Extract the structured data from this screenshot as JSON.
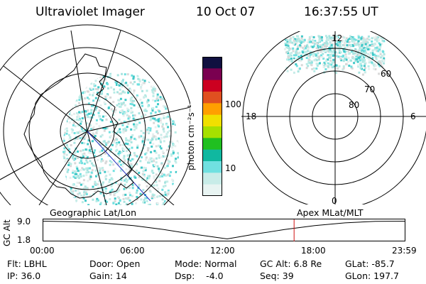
{
  "header": {
    "title": "Ultraviolet Imager",
    "date": "10 Oct 07",
    "time": "16:37:55 UT"
  },
  "colorbar": {
    "label": "photon cm⁻²s⁻¹",
    "ticks": [
      "100",
      "10"
    ],
    "colors": [
      "#101040",
      "#7a0050",
      "#cc0020",
      "#e05020",
      "#ff9f00",
      "#f0e000",
      "#a6e000",
      "#20c020",
      "#10b8a0",
      "#70e0e0",
      "#c8ece8",
      "#e8f4f2"
    ]
  },
  "geo_map": {
    "label": "Geographic Lat/Lon"
  },
  "polar_plot": {
    "label": "Apex MLat/MLT",
    "mlt_labels": [
      "12",
      "18",
      "6",
      "0"
    ],
    "lat_labels": [
      "60",
      "70",
      "80"
    ]
  },
  "timeline": {
    "ylabel": "GC Alt",
    "yticks": [
      "9.0",
      "1.8"
    ],
    "xticks": [
      "00:00",
      "06:00",
      "12:00",
      "18:00",
      "23:59"
    ],
    "current_time_hours": 16.63,
    "series": {
      "x_hours": [
        0,
        2,
        4,
        6,
        8,
        10,
        12.2,
        14,
        16,
        18,
        20,
        22,
        23.98
      ],
      "y": [
        9.0,
        8.8,
        8.2,
        7.2,
        5.6,
        3.7,
        1.8,
        3.7,
        5.6,
        7.2,
        8.3,
        8.9,
        9.0
      ]
    }
  },
  "status": {
    "col1": [
      "Flt: LBHL",
      "IP: 36.0"
    ],
    "col2": [
      "Door: Open",
      "Gain: 14"
    ],
    "col3": [
      "Mode: Normal",
      "Dsp:    -4.0"
    ],
    "col4": [
      "GC Alt: 6.8 Re",
      "Seq: 39"
    ],
    "col5": [
      "GLat: -85.7",
      "GLon: 197.7"
    ]
  }
}
